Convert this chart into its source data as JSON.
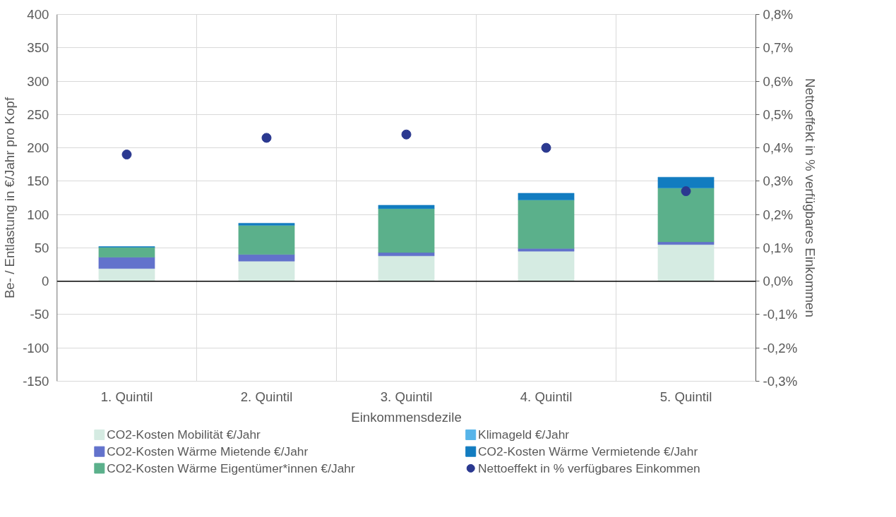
{
  "chart_data": {
    "type": "bar",
    "stacked": true,
    "xlabel": "Einkommensdezile",
    "ylabel": "Be- / Entlastung in €/Jahr pro Kopf",
    "y2label": "Nettoeffekt in % verfügbares Einkommen",
    "categories": [
      "1. Quintil",
      "2. Quintil",
      "3. Quintil",
      "4. Quintil",
      "5. Quintil"
    ],
    "series": [
      {
        "name": "CO2-Kosten Mobilität €/Jahr",
        "color": "#d5ebe2",
        "values": [
          19,
          30,
          38,
          45,
          55
        ]
      },
      {
        "name": "CO2-Kosten Wärme Mietende €/Jahr",
        "color": "#6272cc",
        "values": [
          17,
          10,
          5,
          4,
          4
        ]
      },
      {
        "name": "CO2-Kosten Wärme Eigentümer*innen €/Jahr",
        "color": "#5bb08b",
        "values": [
          15,
          44,
          66,
          73,
          81
        ]
      },
      {
        "name": "Klimageld €/Jahr",
        "color": "#56b4e9",
        "values": [
          0,
          0,
          0,
          0,
          0
        ]
      },
      {
        "name": "CO2-Kosten Wärme Vermietende €/Jahr",
        "color": "#127cc0",
        "values": [
          1,
          3,
          5,
          10,
          16
        ]
      },
      {
        "name": "Nettoeffekt in % verfügbares Einkommen",
        "type": "scatter",
        "axis": "y2",
        "marker": "circle",
        "color": "#2b3990",
        "values": [
          0.38,
          0.43,
          0.44,
          0.4,
          0.27
        ]
      }
    ],
    "ylim": [
      -150,
      400
    ],
    "yticks": [
      -150,
      -100,
      -50,
      0,
      50,
      100,
      150,
      200,
      250,
      300,
      350,
      400
    ],
    "y2lim": [
      -0.3,
      0.8
    ],
    "y2ticks": [
      {
        "value": -0.3,
        "label": "-0,3%"
      },
      {
        "value": -0.2,
        "label": "-0,2%"
      },
      {
        "value": -0.1,
        "label": "-0,1%"
      },
      {
        "value": 0,
        "label": "0,0%"
      },
      {
        "value": 0.1,
        "label": "0,1%"
      },
      {
        "value": 0.2,
        "label": "0,2%"
      },
      {
        "value": 0.3,
        "label": "0,3%"
      },
      {
        "value": 0.4,
        "label": "0,4%"
      },
      {
        "value": 0.5,
        "label": "0,5%"
      },
      {
        "value": 0.6,
        "label": "0,6%"
      },
      {
        "value": 0.7,
        "label": "0,7%"
      },
      {
        "value": 0.8,
        "label": "0,8%"
      }
    ],
    "grid": true,
    "legend": "bottom"
  }
}
